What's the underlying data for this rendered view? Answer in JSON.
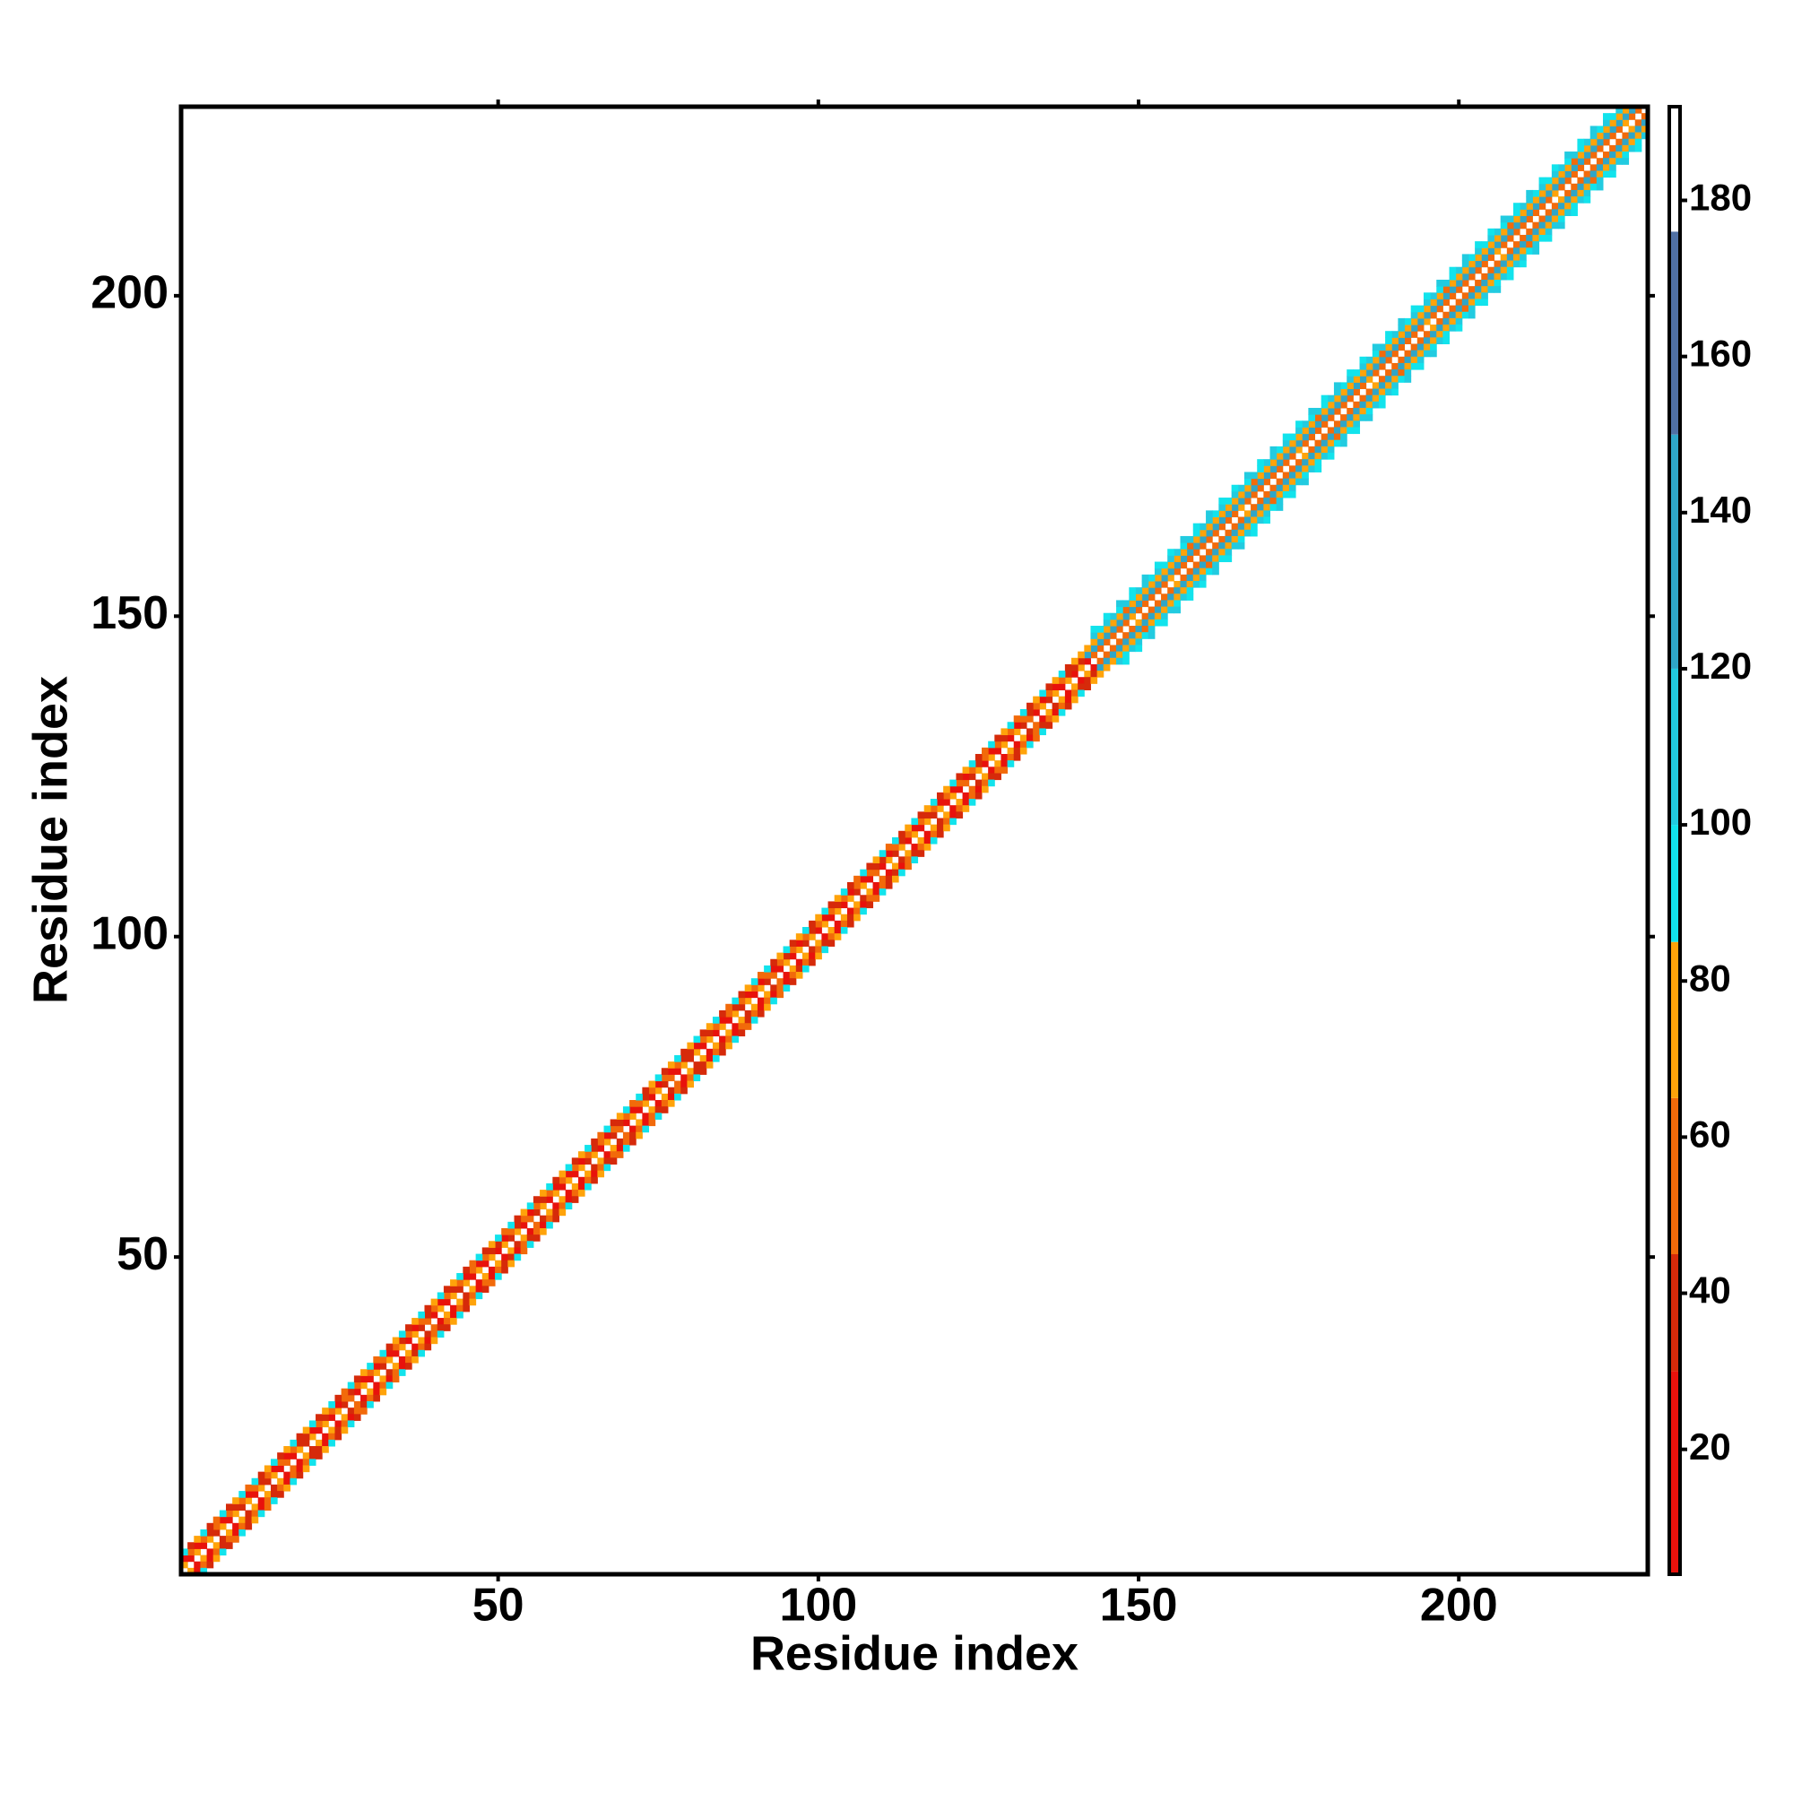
{
  "chart_data": {
    "type": "heatmap",
    "xlabel": "Residue index",
    "ylabel": "Residue index",
    "xlim": [
      0.5,
      229.5
    ],
    "ylim": [
      0.5,
      229.5
    ],
    "xticks": [
      50,
      100,
      150,
      200
    ],
    "yticks": [
      50,
      100,
      150,
      200
    ],
    "clim": [
      4,
      192
    ],
    "cticks": [
      20,
      40,
      60,
      80,
      100,
      120,
      140,
      160,
      180
    ],
    "colorscale": [
      {
        "max": 30,
        "color": "#e8120c"
      },
      {
        "max": 45,
        "color": "#d62a0a"
      },
      {
        "max": 65,
        "color": "#f26a0a"
      },
      {
        "max": 85,
        "color": "#ffa30a"
      },
      {
        "max": 100,
        "color": "#12e3ec"
      },
      {
        "max": 120,
        "color": "#22cbe0"
      },
      {
        "max": 150,
        "color": "#2fa6c8"
      },
      {
        "max": 176,
        "color": "#5070a4"
      },
      {
        "max": 192,
        "color": "#ffffff"
      }
    ],
    "symmetric": true,
    "diagonals": [
      {
        "offset": 1,
        "start": 1,
        "values": [
          70,
          30,
          75,
          25,
          68,
          35,
          72,
          28,
          80,
          32,
          66,
          24,
          74,
          38,
          70,
          30,
          62,
          26,
          76,
          34,
          72,
          28,
          68,
          22,
          78,
          36,
          64,
          30,
          70,
          26,
          74,
          32,
          66,
          24,
          80,
          28,
          70,
          38,
          62,
          30,
          76,
          26,
          72,
          34,
          68,
          22,
          74,
          30,
          66,
          28,
          70,
          36,
          78,
          24,
          64,
          32,
          72,
          26,
          68,
          30,
          74,
          28,
          66,
          38,
          70,
          22,
          76,
          32,
          62,
          26,
          72,
          30,
          68,
          24,
          78,
          34,
          64,
          28,
          70,
          36,
          66,
          22,
          74,
          30,
          72,
          26,
          68,
          34,
          76,
          28,
          70,
          32,
          62,
          24,
          78,
          30,
          66,
          36,
          72,
          26,
          68,
          28,
          74,
          22,
          70,
          34,
          76,
          30,
          64,
          26,
          72,
          36,
          68,
          24,
          78,
          28,
          66,
          32,
          70,
          30,
          74,
          26,
          62,
          34,
          72,
          22,
          68,
          30,
          76,
          28,
          70,
          36,
          64,
          24,
          78,
          32,
          66,
          26,
          72,
          30,
          68,
          28,
          62,
          58,
          64,
          60,
          62,
          58,
          66,
          60,
          62,
          58,
          64,
          60,
          66,
          58,
          62,
          60,
          64,
          58,
          60,
          62,
          58,
          64,
          60,
          66,
          58,
          62,
          60,
          64,
          62,
          58,
          64,
          60,
          66,
          58,
          62,
          60,
          64,
          58,
          60,
          62,
          58,
          64,
          60,
          66,
          58,
          62,
          60,
          64,
          62,
          58,
          64,
          60,
          66,
          58,
          62,
          60,
          64,
          58,
          60,
          62,
          58,
          64,
          60,
          66,
          58,
          62,
          60,
          64,
          62,
          58,
          64,
          60,
          66,
          58,
          62,
          60,
          64,
          58,
          60,
          62,
          58,
          64,
          60,
          66,
          58,
          62
        ]
      },
      {
        "offset": 2,
        "start": 1,
        "values": [
          30,
          55,
          22,
          60,
          35,
          48,
          26,
          62,
          32,
          50,
          28,
          58,
          34,
          46,
          24,
          64,
          30,
          52,
          36,
          44,
          26,
          50,
          32,
          62,
          22,
          56,
          38,
          48,
          28,
          60,
          30,
          55,
          22,
          60,
          35,
          48,
          26,
          62,
          32,
          50,
          28,
          58,
          34,
          46,
          24,
          64,
          30,
          52,
          36,
          44,
          26,
          50,
          32,
          62,
          22,
          56,
          38,
          48,
          28,
          60,
          30,
          55,
          22,
          60,
          35,
          48,
          26,
          62,
          32,
          50,
          28,
          58,
          34,
          46,
          24,
          64,
          30,
          52,
          36,
          44,
          26,
          50,
          32,
          62,
          22,
          56,
          38,
          48,
          28,
          60,
          30,
          55,
          22,
          60,
          35,
          48,
          26,
          62,
          32,
          50,
          28,
          58,
          34,
          46,
          24,
          64,
          30,
          52,
          36,
          44,
          26,
          50,
          32,
          62,
          22,
          56,
          38,
          48,
          28,
          60,
          30,
          55,
          22,
          60,
          35,
          48,
          26,
          62,
          32,
          50,
          28,
          58,
          34,
          46,
          24,
          64,
          30,
          52,
          36,
          44,
          40,
          135,
          140,
          135,
          145,
          138,
          142,
          130,
          148,
          136,
          140,
          144,
          140,
          135,
          145,
          138,
          142,
          130,
          148,
          136,
          140,
          144,
          140,
          135,
          145,
          138,
          142,
          130,
          148,
          136,
          140,
          144,
          140,
          135,
          145,
          138,
          142,
          130,
          148,
          136,
          140,
          144,
          140,
          135,
          145,
          138,
          142,
          130,
          148,
          136,
          140,
          144,
          140,
          135,
          145,
          138,
          142,
          130,
          148,
          136,
          140,
          144,
          140,
          135,
          145,
          138,
          142,
          130,
          148,
          136,
          140,
          144,
          140,
          135,
          145,
          138,
          142,
          130,
          148,
          136,
          140,
          144,
          140,
          135,
          145,
          138,
          142
        ]
      },
      {
        "offset": 3,
        "start": 1,
        "values": [
          95,
          40,
          70,
          100,
          35,
          65,
          92,
          45,
          75,
          98,
          60,
          96,
          38,
          72,
          94,
          42,
          68,
          99,
          36,
          74,
          95,
          40,
          70,
          100,
          35,
          65,
          92,
          45,
          75,
          98,
          60,
          96,
          38,
          72,
          94,
          42,
          68,
          99,
          36,
          74,
          95,
          40,
          70,
          100,
          35,
          65,
          92,
          45,
          75,
          98,
          60,
          96,
          38,
          72,
          94,
          42,
          68,
          99,
          36,
          74,
          95,
          40,
          70,
          100,
          35,
          65,
          92,
          45,
          75,
          98,
          60,
          96,
          38,
          72,
          94,
          42,
          68,
          99,
          36,
          74,
          95,
          40,
          70,
          100,
          35,
          65,
          92,
          45,
          75,
          98,
          60,
          96,
          38,
          72,
          94,
          42,
          68,
          99,
          36,
          74,
          95,
          40,
          70,
          100,
          35,
          65,
          92,
          45,
          75,
          98,
          60,
          96,
          38,
          72,
          94,
          42,
          68,
          99,
          36,
          74,
          95,
          40,
          70,
          100,
          35,
          65,
          92,
          45,
          75,
          98,
          60,
          96,
          38,
          72,
          94,
          42,
          68,
          99,
          36,
          74,
          70,
          72,
          70,
          66,
          74,
          68,
          72,
          64,
          76,
          70,
          68,
          72,
          70,
          66,
          74,
          68,
          72,
          64,
          76,
          70,
          68,
          72,
          70,
          66,
          74,
          68,
          72,
          64,
          76,
          70,
          68,
          72,
          70,
          66,
          74,
          68,
          72,
          64,
          76,
          70,
          68,
          72,
          70,
          66,
          74,
          68,
          72,
          64,
          76,
          70,
          68,
          72,
          70,
          66,
          74,
          68,
          72,
          64,
          76,
          70,
          68,
          72,
          70,
          66,
          74,
          68,
          72,
          64,
          76,
          70,
          68,
          72,
          70,
          66,
          74,
          68,
          72,
          64,
          76,
          70,
          68,
          72,
          70,
          66,
          74,
          68
        ]
      },
      {
        "offset": 4,
        "start": 143,
        "values": [
          105,
          98,
          110,
          102,
          96,
          108,
          100,
          104,
          112,
          99,
          105,
          98,
          110,
          102,
          96,
          108,
          100,
          104,
          112,
          99,
          105,
          98,
          110,
          102,
          96,
          108,
          100,
          104,
          112,
          99,
          105,
          98,
          110,
          102,
          96,
          108,
          100,
          104,
          112,
          99,
          105,
          98,
          110,
          102,
          96,
          108,
          100,
          104,
          112,
          99,
          105,
          98,
          110,
          102,
          96,
          108,
          100,
          104,
          112,
          99,
          105,
          98,
          110,
          102,
          96,
          108,
          100,
          104,
          112,
          99,
          105,
          98,
          110,
          102,
          96,
          108,
          100,
          104,
          112,
          99,
          105,
          98,
          110
        ]
      },
      {
        "offset": 5,
        "start": 143,
        "values": [
          100,
          null,
          96,
          null,
          104,
          null,
          92,
          null,
          108,
          null,
          100,
          null,
          96,
          null,
          104,
          null,
          92,
          null,
          108,
          null,
          100,
          null,
          96,
          null,
          104,
          null,
          92,
          null,
          108,
          null,
          100,
          null,
          96,
          null,
          104,
          null,
          92,
          null,
          108,
          null,
          100,
          null,
          96,
          null,
          104,
          null,
          92,
          null,
          108,
          null,
          100,
          null,
          96,
          null,
          104,
          null,
          92,
          null,
          108,
          null,
          100,
          null,
          96,
          null,
          104,
          null,
          92,
          null,
          108,
          null,
          100,
          null,
          96,
          null,
          104,
          null,
          92,
          null,
          108,
          null,
          100,
          null
        ]
      }
    ]
  }
}
